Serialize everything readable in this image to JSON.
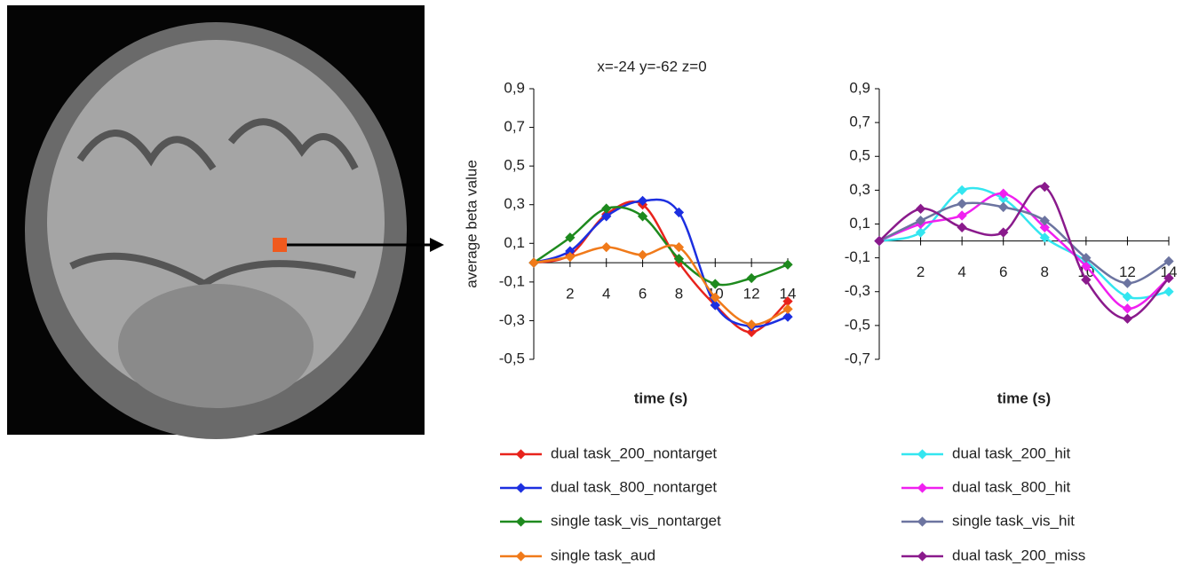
{
  "chart_data": [
    {
      "type": "line",
      "title": "x=-24 y=-62 z=0",
      "x_label": "time (s)",
      "y_label": "average beta value",
      "xlim": [
        0,
        14
      ],
      "xticks": [
        2,
        4,
        6,
        8,
        10,
        12,
        14
      ],
      "ylim": [
        -0.5,
        0.9
      ],
      "yticks": [
        {
          "value": 0.9,
          "label": "0,9"
        },
        {
          "value": 0.7,
          "label": "0,7"
        },
        {
          "value": 0.5,
          "label": "0,5"
        },
        {
          "value": 0.3,
          "label": "0,3"
        },
        {
          "value": 0.1,
          "label": "0,1"
        },
        {
          "value": -0.1,
          "label": "-0,1"
        },
        {
          "value": -0.3,
          "label": "-0,3"
        },
        {
          "value": -0.5,
          "label": "-0,5"
        }
      ],
      "x": [
        0,
        2,
        4,
        6,
        8,
        10,
        12,
        14
      ],
      "series": [
        {
          "name": "dual task_200_nontarget",
          "color": "#e8231c",
          "values": [
            0,
            0.04,
            0.25,
            0.3,
            0.0,
            -0.22,
            -0.36,
            -0.2
          ]
        },
        {
          "name": "dual task_800_nontarget",
          "color": "#1c2fe0",
          "values": [
            0,
            0.06,
            0.24,
            0.32,
            0.26,
            -0.22,
            -0.33,
            -0.28
          ]
        },
        {
          "name": "single task_vis_nontarget",
          "color": "#1e8a1e",
          "values": [
            0,
            0.13,
            0.28,
            0.24,
            0.02,
            -0.11,
            -0.08,
            -0.01
          ]
        },
        {
          "name": "single task_aud",
          "color": "#f07a1a",
          "values": [
            0,
            0.03,
            0.08,
            0.04,
            0.08,
            -0.18,
            -0.32,
            -0.24
          ]
        }
      ]
    },
    {
      "type": "line",
      "x_label": "time (s)",
      "xlim": [
        0,
        14
      ],
      "xticks": [
        2,
        4,
        6,
        8,
        10,
        12,
        14
      ],
      "ylim": [
        -0.7,
        0.9
      ],
      "yticks": [
        {
          "value": 0.9,
          "label": "0,9"
        },
        {
          "value": 0.7,
          "label": "0,7"
        },
        {
          "value": 0.5,
          "label": "0,5"
        },
        {
          "value": 0.3,
          "label": "0,3"
        },
        {
          "value": 0.1,
          "label": "0,1"
        },
        {
          "value": -0.1,
          "label": "-0,1"
        },
        {
          "value": -0.3,
          "label": "-0,3"
        },
        {
          "value": -0.5,
          "label": "-0,5"
        },
        {
          "value": -0.7,
          "label": "-0,7"
        }
      ],
      "x": [
        0,
        2,
        4,
        6,
        8,
        10,
        12,
        14
      ],
      "series": [
        {
          "name": "dual task_200_hit",
          "color": "#33e6f0",
          "values": [
            0,
            0.05,
            0.3,
            0.25,
            0.02,
            -0.12,
            -0.33,
            -0.3
          ]
        },
        {
          "name": "dual task_800_hit",
          "color": "#f020f0",
          "values": [
            0,
            0.1,
            0.15,
            0.28,
            0.08,
            -0.15,
            -0.4,
            -0.22
          ]
        },
        {
          "name": "single task_vis_hit",
          "color": "#6c74a0",
          "values": [
            0,
            0.12,
            0.22,
            0.2,
            0.12,
            -0.1,
            -0.25,
            -0.12
          ]
        },
        {
          "name": "dual task_200_miss",
          "color": "#8a1a8c",
          "values": [
            0,
            0.19,
            0.08,
            0.05,
            0.32,
            -0.23,
            -0.46,
            -0.22
          ]
        }
      ]
    }
  ]
}
